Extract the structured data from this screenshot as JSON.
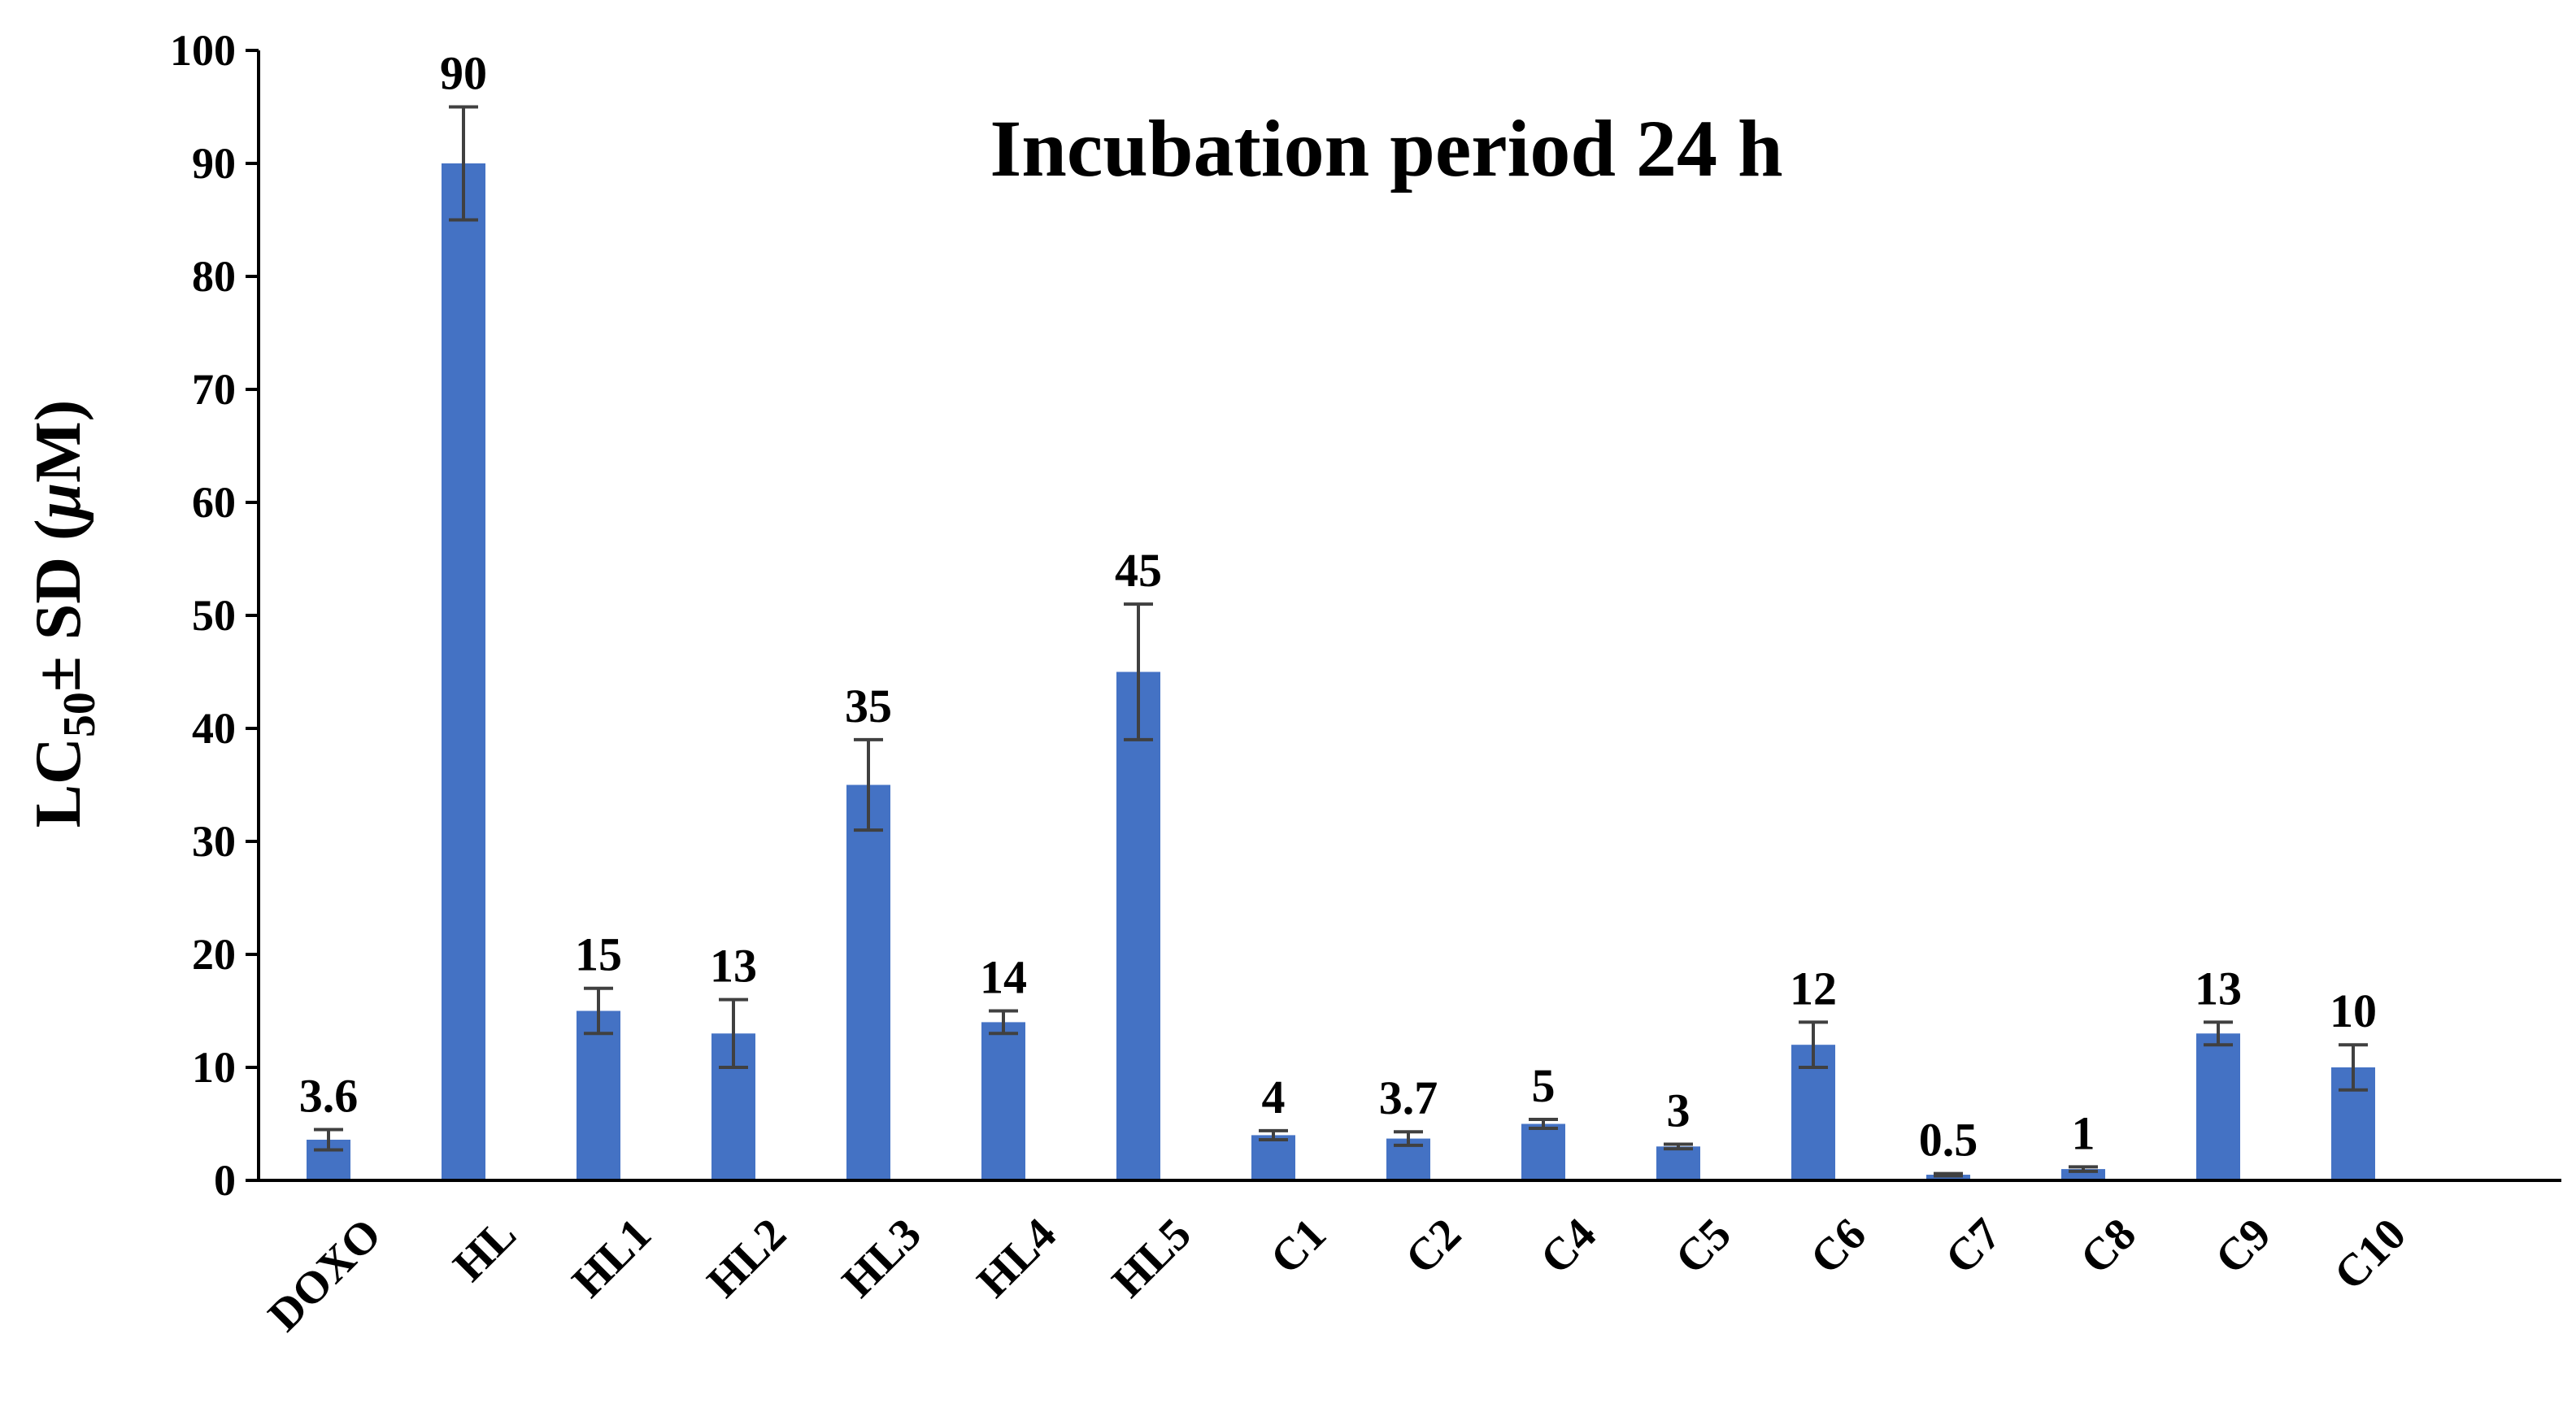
{
  "chart_data": {
    "type": "bar",
    "title": "Incubation period 24 h",
    "ylabel": {
      "main": "LC",
      "subscript": "50",
      "rest": "± SD  (",
      "mu": "μ",
      "unit": "M)"
    },
    "xlabel": "",
    "ylim": [
      0,
      100
    ],
    "yticks": [
      0,
      10,
      20,
      30,
      40,
      50,
      60,
      70,
      80,
      90,
      100
    ],
    "categories": [
      "DOXO",
      "HL",
      "HL1",
      "HL2",
      "HL3",
      "HL4",
      "HL5",
      "C1",
      "C2",
      "C4",
      "C5",
      "C6",
      "C7",
      "C8",
      "C9",
      "C10"
    ],
    "values": [
      3.6,
      90,
      15,
      13,
      35,
      14,
      45,
      4,
      3.7,
      5,
      3,
      12,
      0.5,
      1,
      13,
      10
    ],
    "data_labels": [
      "3.6",
      "90",
      "15",
      "13",
      "35",
      "14",
      "45",
      "4",
      "3.7",
      "5",
      "3",
      "12",
      "0.5",
      "1",
      "13",
      "10"
    ],
    "errors": [
      0.9,
      5,
      2,
      3,
      4,
      1,
      6,
      0.4,
      0.6,
      0.4,
      0.2,
      2,
      0.1,
      0.2,
      1,
      2
    ],
    "bar_color": "#4472c4",
    "error_bar_color": "#404040",
    "grid": false,
    "legend": "none"
  }
}
